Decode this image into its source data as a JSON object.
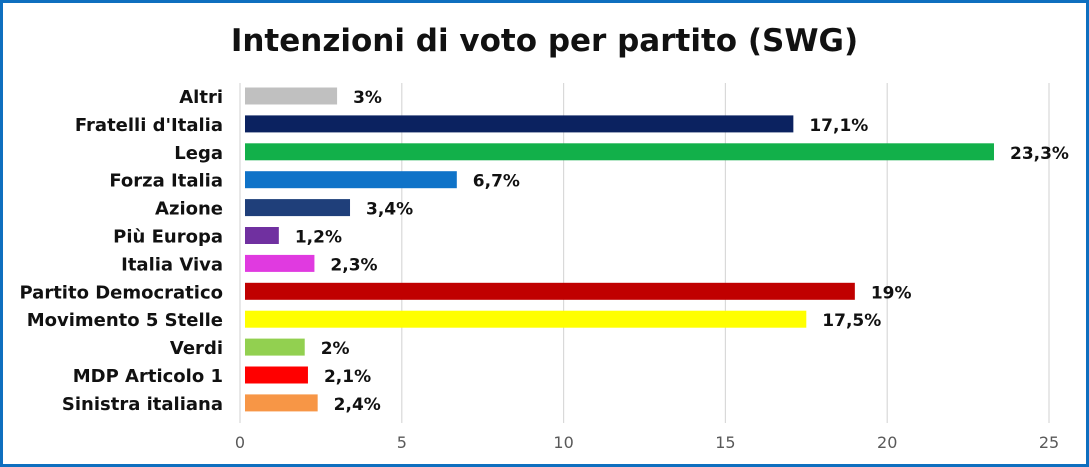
{
  "chart_data": {
    "type": "bar",
    "orientation": "horizontal",
    "title": "Intenzioni di voto per partito (SWG)",
    "xlabel": "",
    "ylabel": "",
    "xlim": [
      0,
      25
    ],
    "x_ticks": [
      0,
      5,
      10,
      15,
      20,
      25
    ],
    "grid": true,
    "legend": "none",
    "categories": [
      "Altri",
      "Fratelli d'Italia",
      "Lega",
      "Forza Italia",
      "Azione",
      "Più Europa",
      "Italia Viva",
      "Partito Democratico",
      "Movimento 5 Stelle",
      "Verdi",
      "MDP Articolo 1",
      "Sinistra italiana"
    ],
    "values": [
      3,
      17.1,
      23.3,
      6.7,
      3.4,
      1.2,
      2.3,
      19,
      17.5,
      2,
      2.1,
      2.4
    ],
    "data_labels": [
      "3%",
      "17,1%",
      "23,3%",
      "6,7%",
      "3,4%",
      "1,2%",
      "2,3%",
      "19%",
      "17,5%",
      "2%",
      "2,1%",
      "2,4%"
    ],
    "colors": [
      "#c0c0c0",
      "#0b2260",
      "#12b04a",
      "#0f73c8",
      "#1f3f7a",
      "#7030a0",
      "#e03ae0",
      "#c00000",
      "#ffff00",
      "#92d050",
      "#ff0000",
      "#f79646"
    ]
  },
  "frame_color": "#0e6fbf"
}
